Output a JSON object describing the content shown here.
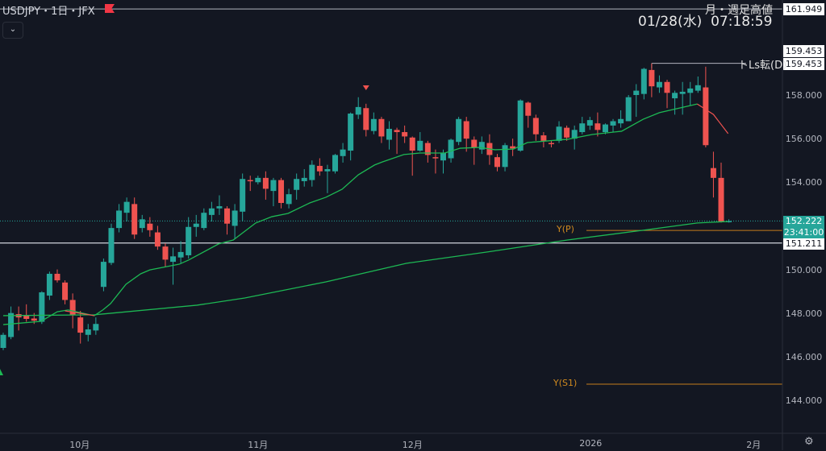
{
  "header": {
    "symbol_title": "USDJPY・1日・JFX",
    "datetime": "01/28(水)  07:18:59",
    "collapse_icon": "chevron-down-icon",
    "flag_icon": "flag-icon"
  },
  "colors": {
    "background": "#131722",
    "up": "#26a69a",
    "down": "#ef5350",
    "ma": "#1db954",
    "pivot": "#c57d1c",
    "hline": "#d1d4dc"
  },
  "chart_data": {
    "type": "candlestick",
    "title": "USDJPY・1日・JFX",
    "ylim": [
      142.8,
      162.3
    ],
    "ohlc": [
      [
        146.4,
        147.1,
        146.3,
        147.0
      ],
      [
        146.9,
        148.3,
        146.8,
        148.0
      ],
      [
        147.95,
        148.3,
        147.2,
        147.8
      ],
      [
        147.9,
        148.4,
        147.6,
        147.73
      ],
      [
        147.75,
        148.0,
        147.5,
        147.65
      ],
      [
        147.6,
        149.0,
        147.5,
        148.95
      ],
      [
        148.8,
        149.9,
        148.6,
        149.8
      ],
      [
        149.8,
        150.0,
        149.4,
        149.5
      ],
      [
        149.4,
        149.5,
        148.4,
        148.6
      ],
      [
        148.6,
        148.9,
        147.3,
        147.9
      ],
      [
        147.8,
        148.1,
        146.6,
        147.1
      ],
      [
        147.0,
        147.5,
        146.7,
        147.25
      ],
      [
        147.2,
        147.8,
        147.0,
        147.5
      ],
      [
        149.2,
        150.5,
        149.0,
        150.35
      ],
      [
        150.3,
        152.1,
        150.2,
        151.9
      ],
      [
        151.9,
        153.0,
        151.7,
        152.7
      ],
      [
        152.6,
        153.3,
        152.2,
        153.1
      ],
      [
        153.0,
        153.3,
        151.4,
        151.6
      ],
      [
        151.9,
        152.5,
        151.7,
        152.3
      ],
      [
        152.1,
        152.4,
        151.5,
        151.8
      ],
      [
        151.7,
        152.0,
        150.9,
        151.05
      ],
      [
        151.05,
        151.2,
        150.1,
        150.45
      ],
      [
        150.35,
        151.0,
        149.3,
        150.6
      ],
      [
        150.55,
        151.3,
        150.3,
        150.8
      ],
      [
        150.65,
        152.4,
        150.5,
        151.95
      ],
      [
        151.95,
        152.5,
        151.5,
        152.1
      ],
      [
        151.9,
        152.8,
        151.8,
        152.6
      ],
      [
        152.5,
        153.1,
        152.2,
        152.8
      ],
      [
        152.8,
        153.4,
        152.5,
        152.9
      ],
      [
        152.8,
        152.9,
        151.6,
        152.1
      ],
      [
        152.0,
        153.0,
        151.4,
        152.7
      ],
      [
        152.65,
        154.4,
        152.2,
        154.15
      ],
      [
        154.1,
        154.3,
        153.6,
        154.05
      ],
      [
        154.0,
        154.3,
        153.9,
        154.2
      ],
      [
        154.2,
        154.5,
        153.2,
        153.7
      ],
      [
        153.6,
        154.2,
        152.9,
        154.1
      ],
      [
        154.1,
        154.2,
        152.8,
        153.05
      ],
      [
        153.0,
        153.7,
        152.8,
        153.45
      ],
      [
        153.65,
        154.4,
        153.2,
        154.15
      ],
      [
        154.05,
        154.6,
        153.8,
        154.2
      ],
      [
        154.1,
        155.0,
        153.8,
        154.8
      ],
      [
        154.75,
        155.1,
        154.3,
        154.5
      ],
      [
        154.5,
        154.8,
        153.5,
        154.6
      ],
      [
        154.5,
        155.3,
        154.4,
        155.25
      ],
      [
        155.2,
        155.8,
        154.9,
        155.5
      ],
      [
        155.45,
        157.2,
        155.0,
        157.15
      ],
      [
        157.1,
        157.9,
        156.9,
        157.45
      ],
      [
        157.4,
        157.6,
        156.1,
        156.4
      ],
      [
        156.35,
        157.2,
        156.2,
        156.9
      ],
      [
        156.9,
        157.0,
        155.8,
        156.1
      ],
      [
        155.95,
        156.8,
        155.5,
        156.45
      ],
      [
        156.4,
        156.5,
        155.3,
        156.3
      ],
      [
        156.3,
        156.6,
        155.8,
        156.1
      ],
      [
        156.05,
        156.1,
        154.3,
        155.45
      ],
      [
        155.45,
        156.3,
        155.4,
        155.9
      ],
      [
        155.8,
        155.9,
        154.9,
        155.25
      ],
      [
        155.15,
        155.5,
        154.4,
        155.1
      ],
      [
        155.0,
        155.5,
        154.4,
        155.35
      ],
      [
        155.1,
        156.0,
        154.9,
        155.95
      ],
      [
        155.85,
        157.0,
        155.7,
        156.9
      ],
      [
        156.8,
        157.0,
        155.4,
        156.0
      ],
      [
        155.95,
        156.1,
        154.8,
        155.6
      ],
      [
        155.5,
        156.1,
        155.3,
        155.85
      ],
      [
        155.8,
        156.2,
        154.8,
        155.25
      ],
      [
        155.15,
        155.3,
        154.5,
        154.7
      ],
      [
        154.7,
        155.8,
        154.5,
        155.7
      ],
      [
        155.65,
        156.0,
        155.2,
        155.55
      ],
      [
        155.45,
        157.8,
        155.4,
        157.75
      ],
      [
        157.65,
        157.7,
        156.5,
        157.05
      ],
      [
        156.95,
        157.1,
        155.9,
        156.2
      ],
      [
        156.15,
        156.3,
        155.6,
        155.9
      ],
      [
        155.8,
        155.9,
        155.6,
        155.75
      ],
      [
        155.9,
        156.8,
        155.8,
        156.55
      ],
      [
        156.5,
        156.6,
        155.9,
        156.05
      ],
      [
        156.0,
        156.6,
        155.5,
        156.4
      ],
      [
        156.3,
        157.0,
        156.2,
        156.7
      ],
      [
        156.6,
        157.0,
        156.4,
        156.85
      ],
      [
        156.7,
        157.2,
        156.1,
        156.4
      ],
      [
        156.3,
        156.7,
        156.2,
        156.65
      ],
      [
        156.6,
        156.9,
        156.3,
        156.8
      ],
      [
        156.7,
        157.3,
        156.5,
        156.9
      ],
      [
        156.8,
        158.0,
        156.8,
        157.9
      ],
      [
        158.0,
        158.5,
        157.0,
        158.2
      ],
      [
        158.05,
        159.25,
        157.8,
        159.2
      ],
      [
        159.15,
        159.45,
        157.9,
        158.4
      ],
      [
        158.35,
        158.9,
        158.1,
        158.6
      ],
      [
        158.6,
        158.7,
        157.4,
        158.1
      ],
      [
        157.85,
        158.2,
        157.1,
        158.1
      ],
      [
        158.05,
        158.6,
        157.1,
        158.15
      ],
      [
        158.1,
        158.6,
        157.5,
        158.3
      ],
      [
        158.2,
        158.85,
        158.1,
        158.45
      ],
      [
        158.35,
        159.3,
        155.6,
        155.7
      ],
      [
        154.65,
        155.4,
        153.3,
        154.2
      ],
      [
        154.2,
        154.9,
        152.15,
        152.2
      ],
      [
        152.2,
        152.3,
        152.15,
        152.222
      ]
    ],
    "ma_short": [
      [
        0,
        147.47
      ],
      [
        4.9,
        147.62
      ],
      [
        7,
        148.06
      ],
      [
        8.4,
        148.14
      ],
      [
        11.8,
        147.88
      ],
      [
        12.9,
        148.14
      ],
      [
        13.9,
        148.43
      ],
      [
        15.9,
        149.32
      ],
      [
        17.8,
        149.8
      ],
      [
        19,
        149.98
      ],
      [
        22.8,
        150.24
      ],
      [
        24,
        150.43
      ],
      [
        27.9,
        151.17
      ],
      [
        29.8,
        151.35
      ],
      [
        32.7,
        152.13
      ],
      [
        34.8,
        152.42
      ],
      [
        36.9,
        152.57
      ],
      [
        39.7,
        153.05
      ],
      [
        41.8,
        153.31
      ],
      [
        43.9,
        153.68
      ],
      [
        46,
        154.34
      ],
      [
        48.1,
        154.79
      ],
      [
        49.1,
        154.93
      ],
      [
        51.9,
        155.27
      ],
      [
        54,
        155.34
      ],
      [
        57.2,
        155.34
      ],
      [
        59.2,
        155.56
      ],
      [
        61.7,
        155.6
      ],
      [
        63.7,
        155.49
      ],
      [
        66.1,
        155.52
      ],
      [
        67.9,
        155.82
      ],
      [
        73.1,
        155.97
      ],
      [
        76.3,
        156.19
      ],
      [
        80.1,
        156.34
      ],
      [
        82.9,
        156.89
      ],
      [
        85,
        157.19
      ],
      [
        89.9,
        157.59
      ]
    ],
    "ma_short_falling": [
      [
        [
          8.0,
          148.1
        ],
        [
          11.8,
          147.88
        ]
      ],
      [
        [
          89.9,
          157.59
        ],
        [
          92,
          157.11
        ],
        [
          93.9,
          156.23
        ]
      ]
    ],
    "ma_long": [
      [
        0,
        147.88
      ],
      [
        11.8,
        147.92
      ],
      [
        25.1,
        148.36
      ],
      [
        31.3,
        148.69
      ],
      [
        41.8,
        149.43
      ],
      [
        52.2,
        150.28
      ],
      [
        62.7,
        150.8
      ],
      [
        73.1,
        151.35
      ],
      [
        83.6,
        151.83
      ],
      [
        89.9,
        152.13
      ],
      [
        93.9,
        152.2
      ]
    ],
    "y_ticks": [
      "158.000",
      "156.000",
      "154.000",
      "150.000",
      "148.000",
      "146.000",
      "144.000"
    ],
    "y_tick_values": [
      158,
      156,
      154,
      150,
      148,
      146,
      144
    ],
    "x_ticks": [
      {
        "label": "10月",
        "index": 9.9
      },
      {
        "label": "11月",
        "index": 33.0
      },
      {
        "label": "12月",
        "index": 53.0
      },
      {
        "label": "2026",
        "index": 76.1
      },
      {
        "label": "2月",
        "index": 97.2
      }
    ],
    "current_price": "152.222",
    "current_price_value": 152.222,
    "countdown": "23:41:00",
    "levels": [
      {
        "label": "月・週足高値",
        "price_label": "161.949",
        "price": 161.949
      },
      {
        "label": "トLs転(D)",
        "price_label": "159.453",
        "price": 159.453,
        "start_index": 84
      },
      {
        "label": "",
        "price_label": "159.453",
        "price": 159.453
      },
      {
        "label": "",
        "price_label": "151.211",
        "price": 151.211
      }
    ],
    "pivots": [
      {
        "label": "Y(P)",
        "price": 151.79
      },
      {
        "label": "Y(S1)",
        "price": 144.74
      }
    ],
    "markers": [
      {
        "type": "sell-arrow",
        "index": 47
      },
      {
        "type": "buy-arrow",
        "index": 0
      }
    ]
  },
  "footer": {
    "settings_icon": "gear-icon"
  }
}
